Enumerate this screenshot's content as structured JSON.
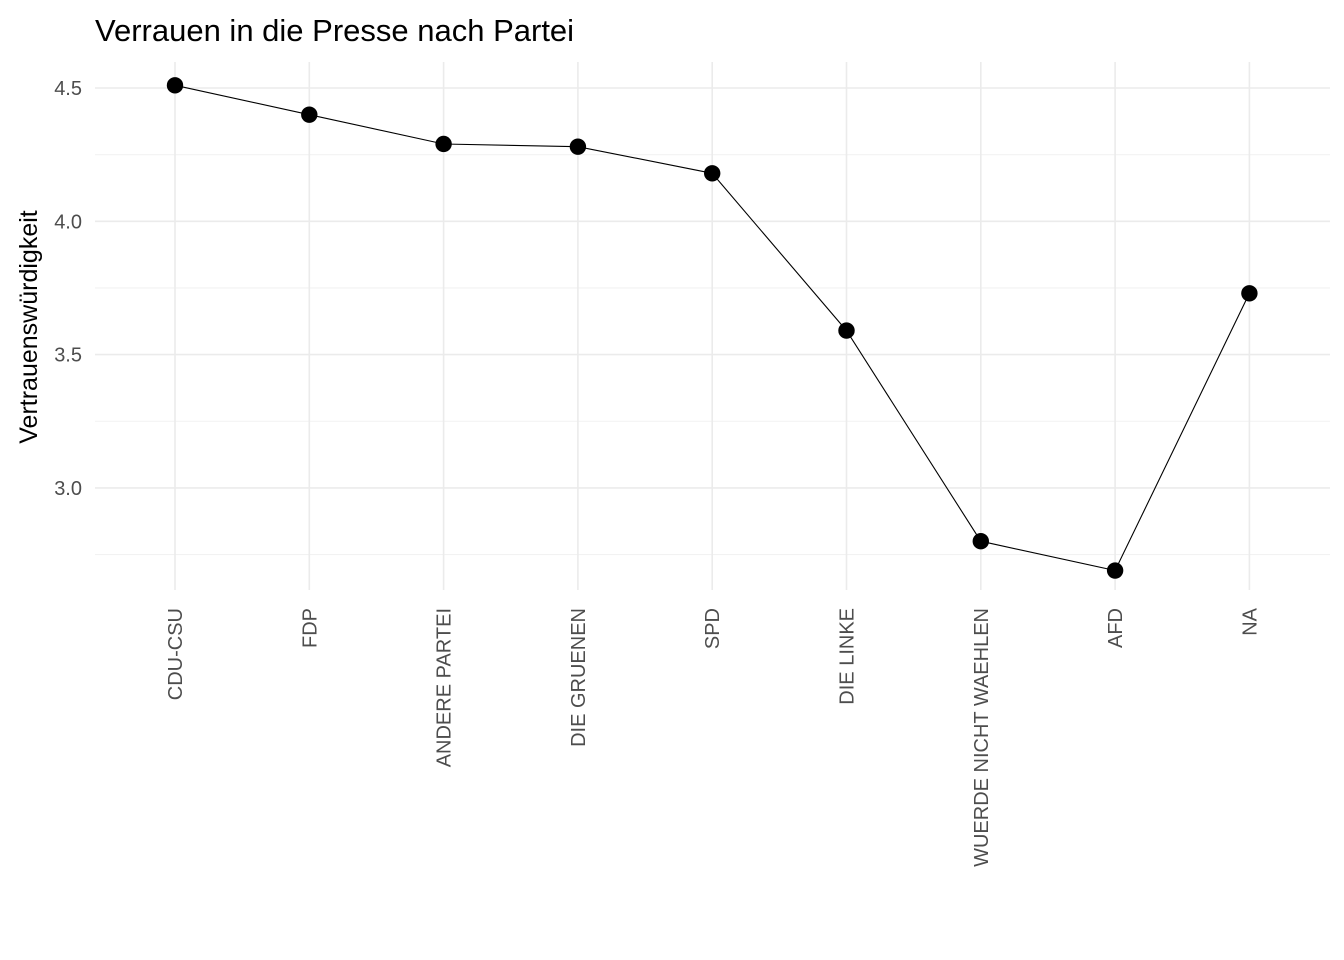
{
  "chart_data": {
    "type": "line",
    "title": "Verrauen in die Presse nach Partei",
    "xlabel": "",
    "ylabel": "Vertrauenswürdigkeit",
    "categories": [
      "CDU-CSU",
      "FDP",
      "ANDERE PARTEI",
      "DIE GRUENEN",
      "SPD",
      "DIE LINKE",
      "WUERDE NICHT WAEHLEN",
      "AFD",
      "NA"
    ],
    "values": [
      4.51,
      4.4,
      4.29,
      4.28,
      4.18,
      3.59,
      2.8,
      2.69,
      3.73
    ],
    "yticks": [
      3.0,
      3.5,
      4.0,
      4.5
    ],
    "ytick_labels": [
      "3.0",
      "3.5",
      "4.0",
      "4.5"
    ],
    "ylim": [
      2.62,
      4.6
    ],
    "grid": true,
    "legend": "none",
    "colors": {
      "line": "#000000",
      "point": "#000000",
      "grid_major": "#ebebeb",
      "grid_minor": "#f2f2f2",
      "tick_text": "#4d4d4d"
    }
  }
}
